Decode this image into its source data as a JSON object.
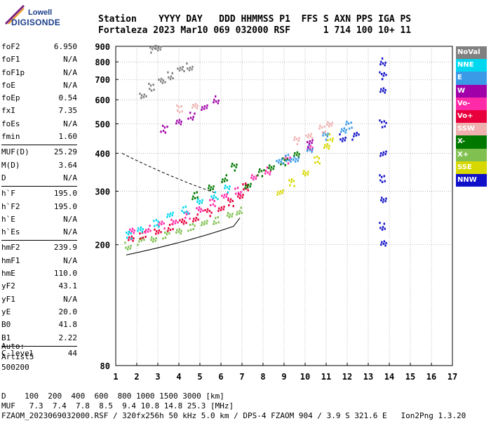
{
  "logo": {
    "line1": "Lowell",
    "line2": "DIGISONDE"
  },
  "header": {
    "labels": "Station    YYYY DAY   DDD HHMMSS P1  FFS S AXN PPS IGA PS",
    "values": "Fortaleza 2023 Mar10 069 032000 RSF      1 714 100 10+ 11"
  },
  "params": [
    [
      {
        "k": "foF2",
        "v": "6.950"
      },
      {
        "k": "foF1",
        "v": "N/A"
      },
      {
        "k": "foF1p",
        "v": "N/A"
      },
      {
        "k": "foE",
        "v": "N/A"
      },
      {
        "k": "foEp",
        "v": "0.54"
      },
      {
        "k": "fxI",
        "v": "7.35"
      },
      {
        "k": "foEs",
        "v": "N/A"
      },
      {
        "k": "fmin",
        "v": "1.60"
      }
    ],
    [
      {
        "k": "MUF(D)",
        "v": "25.29"
      },
      {
        "k": "M(D)",
        "v": "3.64"
      },
      {
        "k": "D",
        "v": "N/A"
      }
    ],
    [
      {
        "k": "h`F",
        "v": "195.0"
      },
      {
        "k": "h`F2",
        "v": "195.0"
      },
      {
        "k": "h`E",
        "v": "N/A"
      },
      {
        "k": "h`Es",
        "v": "N/A"
      }
    ],
    [
      {
        "k": "hmF2",
        "v": "239.9"
      },
      {
        "k": "hmF1",
        "v": "N/A"
      },
      {
        "k": "hmE",
        "v": "110.0"
      },
      {
        "k": "yF2",
        "v": "43.1"
      },
      {
        "k": "yF1",
        "v": "N/A"
      },
      {
        "k": "yE",
        "v": "20.0"
      },
      {
        "k": "B0",
        "v": "41.8"
      },
      {
        "k": "B1",
        "v": "2.22"
      }
    ],
    [
      {
        "k": "C-level",
        "v": "44"
      }
    ]
  ],
  "auto": {
    "line1": "Auto:",
    "line2": "Artist5",
    "line3": "500200"
  },
  "legend": [
    {
      "name": "NoVal",
      "color": "#808080"
    },
    {
      "name": "NNE",
      "color": "#00d8f0"
    },
    {
      "name": "E",
      "color": "#3a9ae8"
    },
    {
      "name": "W",
      "color": "#a000a8"
    },
    {
      "name": "Vo-",
      "color": "#ff2aa8"
    },
    {
      "name": "Vo+",
      "color": "#e8003c"
    },
    {
      "name": "SSW",
      "color": "#f0b0b0"
    },
    {
      "name": "X-",
      "color": "#007800"
    },
    {
      "name": "X+",
      "color": "#80c050"
    },
    {
      "name": "SSE",
      "color": "#d8d800"
    },
    {
      "name": "NNW",
      "color": "#1010c8"
    }
  ],
  "footer": {
    "line1": "D    100  200  400  600  800 1000 1500 3000 [km]",
    "line2": "MUF   7.3  7.4  7.8  8.5  9.4 10.8 14.8 25.3 [MHz]",
    "line3": "FZAOM_2023069032000.RSF / 320fx256h 50 kHz 5.0 km / DPS-4 FZAOM 904 / 3.9 S 321.6 E   Ion2Png 1.3.20"
  },
  "chart_data": {
    "type": "scatter",
    "xlim": [
      1,
      17
    ],
    "ylim": [
      80,
      900
    ],
    "y_scale": "log",
    "x_ticks": [
      1,
      2,
      3,
      4,
      5,
      6,
      7,
      8,
      9,
      10,
      11,
      12,
      13,
      14,
      15,
      16,
      17
    ],
    "y_ticks": [
      80,
      200,
      300,
      400,
      500,
      600,
      700,
      800,
      900
    ],
    "grid": true,
    "series": [
      {
        "name": "X+",
        "color": "#80c050",
        "points": [
          [
            1.6,
            198
          ],
          [
            2.2,
            205
          ],
          [
            2.8,
            210
          ],
          [
            3.4,
            215
          ],
          [
            4.0,
            222
          ],
          [
            4.6,
            228
          ],
          [
            5.2,
            235
          ],
          [
            5.8,
            240
          ],
          [
            6.4,
            248
          ],
          [
            6.9,
            258
          ]
        ]
      },
      {
        "name": "Vo+",
        "color": "#e8003c",
        "points": [
          [
            1.7,
            210
          ],
          [
            2.3,
            215
          ],
          [
            3.0,
            220
          ],
          [
            3.6,
            228
          ],
          [
            4.2,
            236
          ],
          [
            4.8,
            245
          ],
          [
            5.4,
            255
          ],
          [
            6.0,
            265
          ],
          [
            6.5,
            275
          ],
          [
            6.9,
            290
          ],
          [
            7.2,
            310
          ]
        ]
      },
      {
        "name": "Vo-",
        "color": "#ff2aa8",
        "points": [
          [
            1.8,
            220
          ],
          [
            2.5,
            225
          ],
          [
            3.2,
            232
          ],
          [
            3.8,
            240
          ],
          [
            4.4,
            250
          ],
          [
            5.0,
            262
          ],
          [
            5.6,
            275
          ],
          [
            6.2,
            288
          ],
          [
            6.8,
            300
          ],
          [
            7.6,
            330
          ],
          [
            8.2,
            350
          ],
          [
            9.2,
            380
          ],
          [
            10.2,
            420
          ]
        ]
      },
      {
        "name": "NNE",
        "color": "#00d8f0",
        "points": [
          [
            1.6,
            215
          ],
          [
            2.2,
            225
          ],
          [
            2.9,
            235
          ],
          [
            3.6,
            250
          ],
          [
            4.3,
            260
          ],
          [
            5.0,
            275
          ],
          [
            5.7,
            290
          ],
          [
            6.3,
            305
          ]
        ]
      },
      {
        "name": "X-",
        "color": "#007800",
        "points": [
          [
            4.8,
            290
          ],
          [
            5.5,
            305
          ],
          [
            6.2,
            330
          ],
          [
            6.6,
            360
          ],
          [
            7.3,
            315
          ],
          [
            7.9,
            345
          ],
          [
            8.4,
            360
          ],
          [
            9.0,
            375
          ],
          [
            9.6,
            395
          ]
        ]
      },
      {
        "name": "SSE",
        "color": "#d8d800",
        "points": [
          [
            8.8,
            300
          ],
          [
            9.4,
            320
          ],
          [
            10.0,
            345
          ],
          [
            10.6,
            380
          ],
          [
            11.0,
            420
          ],
          [
            11.2,
            450
          ]
        ]
      },
      {
        "name": "E",
        "color": "#3a9ae8",
        "points": [
          [
            8.8,
            375
          ],
          [
            9.2,
            385
          ],
          [
            9.6,
            378
          ],
          [
            10.2,
            415
          ],
          [
            11.0,
            455
          ],
          [
            11.8,
            480
          ],
          [
            12.1,
            495
          ]
        ]
      },
      {
        "name": "SSW",
        "color": "#f0b0b0",
        "points": [
          [
            9.6,
            440
          ],
          [
            10.2,
            460
          ],
          [
            10.8,
            480
          ],
          [
            11.2,
            500
          ],
          [
            4.0,
            560
          ],
          [
            4.8,
            570
          ]
        ]
      },
      {
        "name": "W",
        "color": "#a000a8",
        "points": [
          [
            3.3,
            480
          ],
          [
            4.0,
            505
          ],
          [
            4.6,
            530
          ],
          [
            5.2,
            560
          ],
          [
            5.8,
            600
          ],
          [
            10.2,
            430
          ]
        ]
      },
      {
        "name": "NNW",
        "color": "#1010c8",
        "points": [
          [
            13.7,
            800
          ],
          [
            13.7,
            720
          ],
          [
            13.7,
            650
          ],
          [
            13.7,
            500
          ],
          [
            13.7,
            400
          ],
          [
            13.7,
            330
          ],
          [
            13.7,
            280
          ],
          [
            13.7,
            230
          ],
          [
            13.7,
            200
          ],
          [
            11.8,
            450
          ],
          [
            12.4,
            455
          ]
        ]
      },
      {
        "name": "NoVal",
        "color": "#808080",
        "points": [
          [
            2.3,
            620
          ],
          [
            2.7,
            660
          ],
          [
            3.2,
            690
          ],
          [
            3.6,
            720
          ],
          [
            4.1,
            750
          ],
          [
            4.5,
            770
          ],
          [
            2.8,
            880
          ],
          [
            3.0,
            895
          ]
        ]
      }
    ]
  }
}
